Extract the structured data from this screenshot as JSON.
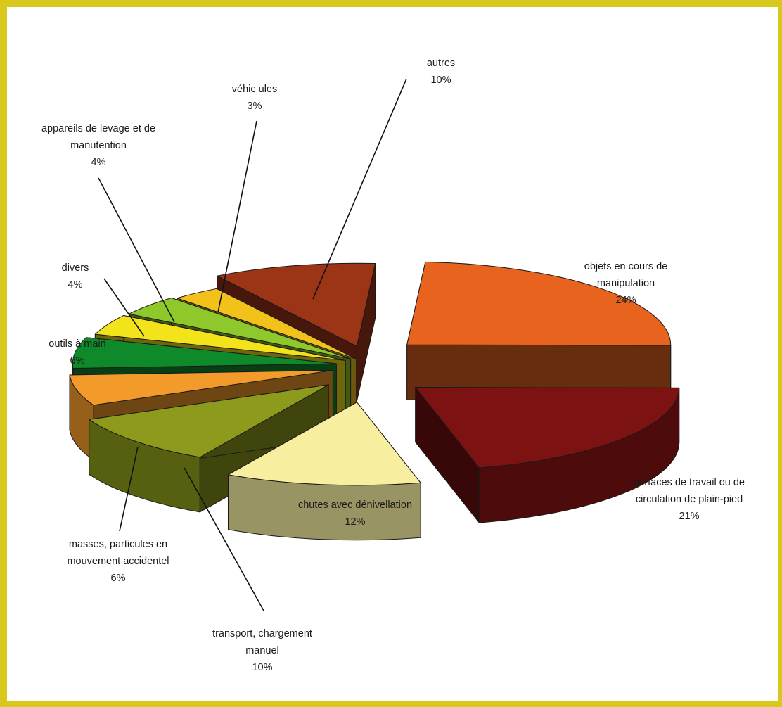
{
  "chart_data": {
    "type": "pie",
    "title": "",
    "legend": "none",
    "slices": [
      {
        "label": "objets en cours de manipulation",
        "label_lines": [
          "objets en cours de",
          "manipulation"
        ],
        "pct_label": "24%",
        "value": 24,
        "color": "#e8631e"
      },
      {
        "label": "surfaces de travail ou de circulation de plain-pied",
        "label_lines": [
          "surfaces de travail ou de",
          "circulation de plain-pied"
        ],
        "pct_label": "21%",
        "value": 21,
        "color": "#7c1212"
      },
      {
        "label": "chutes avec dénivellation",
        "label_lines": [
          "chutes avec dénivellation"
        ],
        "pct_label": "12%",
        "value": 12,
        "color": "#f7eea0"
      },
      {
        "label": "transport, chargement manuel",
        "label_lines": [
          "transport, chargement",
          "manuel"
        ],
        "pct_label": "10%",
        "value": 10,
        "color": "#8d9a1c"
      },
      {
        "label": "masses, particules en mouvement accidentel",
        "label_lines": [
          "masses, particules en",
          "mouvement accidentel"
        ],
        "pct_label": "6%",
        "value": 6,
        "color": "#f39b2a"
      },
      {
        "label": "outils à main",
        "label_lines": [
          "outils à main"
        ],
        "pct_label": "6%",
        "value": 6,
        "color": "#0f8a2a"
      },
      {
        "label": "divers",
        "label_lines": [
          "divers"
        ],
        "pct_label": "4%",
        "value": 4,
        "color": "#f3e31a"
      },
      {
        "label": "appareils de levage et de manutention",
        "label_lines": [
          "appareils de levage et de",
          "manutention"
        ],
        "pct_label": "4%",
        "value": 4,
        "color": "#8ec82a"
      },
      {
        "label": "véhicules",
        "label_lines": [
          "véhic ules"
        ],
        "pct_label": "3%",
        "value": 3,
        "color": "#f3c21a"
      },
      {
        "label": "autres",
        "label_lines": [
          "autres"
        ],
        "pct_label": "10%",
        "value": 10,
        "color": "#9c3416"
      }
    ]
  }
}
